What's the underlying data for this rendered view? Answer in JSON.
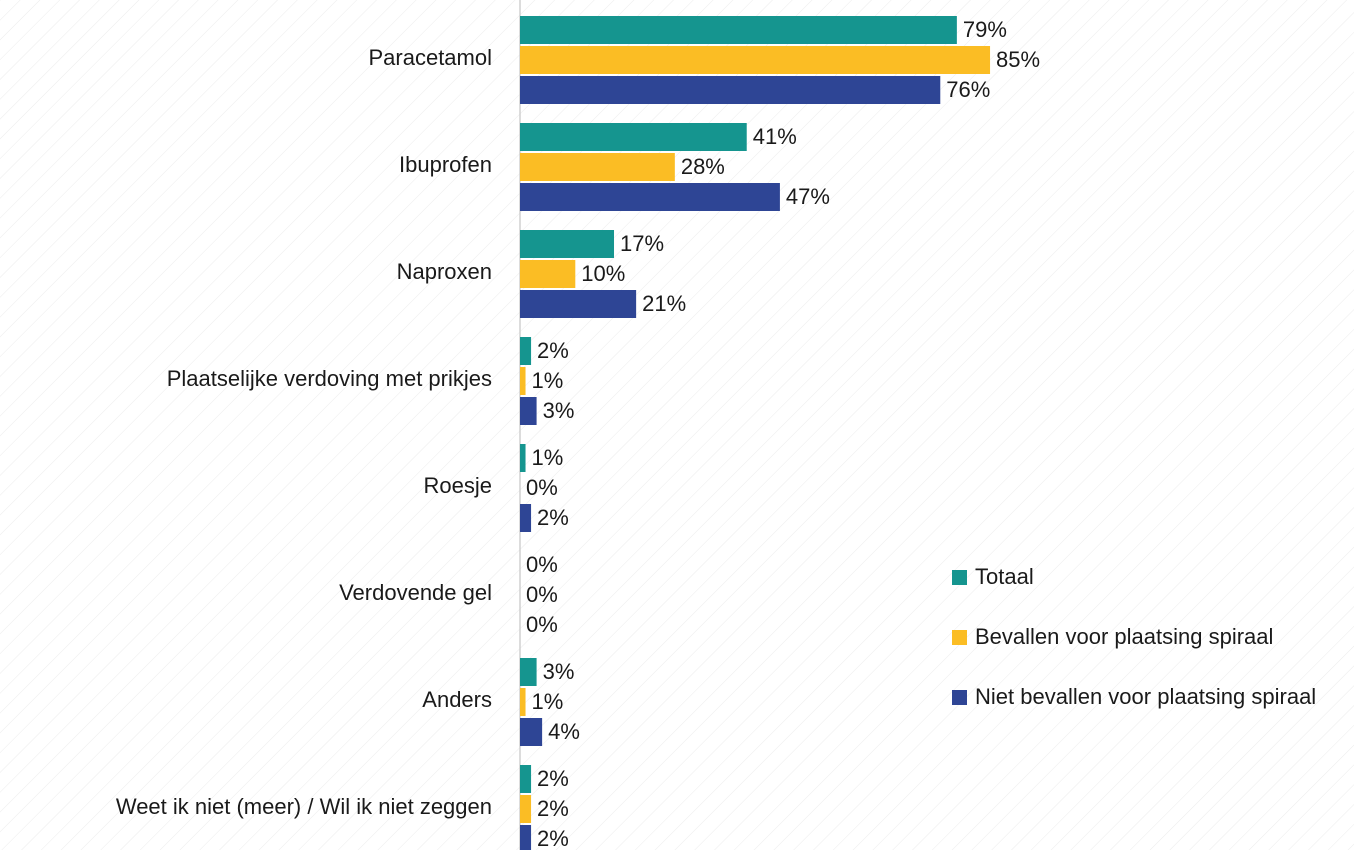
{
  "chart_data": {
    "type": "hbar",
    "categories": [
      "Paracetamol",
      "Ibuprofen",
      "Naproxen",
      "Plaatselijke verdoving met prikjes",
      "Roesje",
      "Verdovende gel",
      "Anders",
      "Weet ik niet (meer) / Wil ik niet zeggen"
    ],
    "series": [
      {
        "name": "Totaal",
        "color": "#15958f",
        "values": [
          79,
          41,
          17,
          2,
          1,
          0,
          3,
          2
        ],
        "value_labels": [
          "79%",
          "41%",
          "17%",
          "2%",
          "1%",
          "0%",
          "3%",
          "2%"
        ]
      },
      {
        "name": "Bevallen voor plaatsing spiraal",
        "color": "#fbbd24",
        "values": [
          85,
          28,
          10,
          1,
          0,
          0,
          1,
          2
        ],
        "value_labels": [
          "85%",
          "28%",
          "10%",
          "1%",
          "0%",
          "0%",
          "1%",
          "2%"
        ]
      },
      {
        "name": "Niet bevallen voor plaatsing spiraal",
        "color": "#2e4595",
        "values": [
          76,
          47,
          21,
          3,
          2,
          0,
          4,
          2
        ],
        "value_labels": [
          "76%",
          "47%",
          "21%",
          "3%",
          "2%",
          "0%",
          "4%",
          "2%"
        ]
      }
    ]
  }
}
